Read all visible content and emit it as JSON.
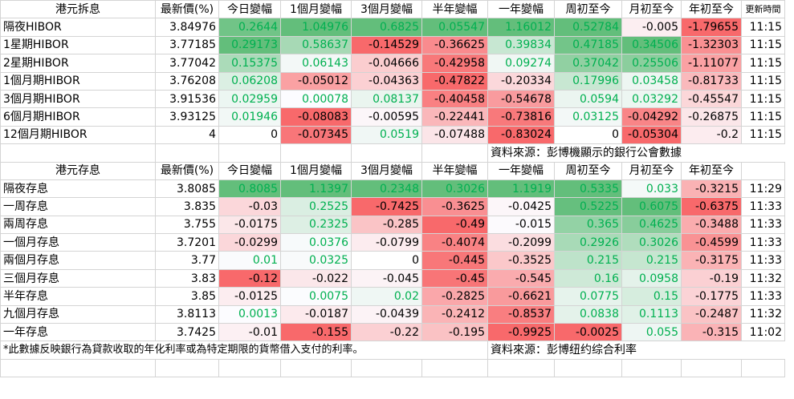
{
  "hibor": {
    "title": "港元拆息",
    "headers": [
      "最新價(%)",
      "今日變幅",
      "1個月變幅",
      "3個月變幅",
      "半年變幅",
      "一年變幅",
      "周初至今",
      "月初至今",
      "年初至今",
      "更新時間"
    ],
    "rows": [
      {
        "label": "隔夜HIBOR",
        "values": [
          "3.84976",
          "0.2644",
          "1.04976",
          "0.6825",
          "0.05547",
          "1.16012",
          "0.52784",
          "-0.005",
          "-1.79655",
          "11:15"
        ]
      },
      {
        "label": "1星期HIBOR",
        "values": [
          "3.77185",
          "0.29173",
          "0.58637",
          "-0.14529",
          "-0.36625",
          "0.39834",
          "0.47185",
          "0.34506",
          "-1.32303",
          "11:15"
        ]
      },
      {
        "label": "2星期HIBOR",
        "values": [
          "3.77042",
          "0.15375",
          "0.06143",
          "-0.04666",
          "-0.42958",
          "0.09274",
          "0.37042",
          "0.25506",
          "-1.11077",
          "11:15"
        ]
      },
      {
        "label": "1個月期HIBOR",
        "values": [
          "3.76208",
          "0.06208",
          "-0.05012",
          "-0.04363",
          "-0.47822",
          "-0.20334",
          "0.17996",
          "0.03458",
          "-0.81733",
          "11:15"
        ]
      },
      {
        "label": "3個月期HIBOR",
        "values": [
          "3.91536",
          "0.02959",
          "0.00078",
          "0.08137",
          "-0.40458",
          "-0.54678",
          "0.0594",
          "0.03292",
          "-0.45547",
          "11:15"
        ]
      },
      {
        "label": "6個月期HIBOR",
        "values": [
          "3.93125",
          "0.01946",
          "-0.08083",
          "-0.00595",
          "-0.22441",
          "-0.73816",
          "0.03125",
          "-0.04292",
          "-0.26875",
          "11:15"
        ]
      },
      {
        "label": "12個月期HIBOR",
        "values": [
          "4",
          "0",
          "-0.07345",
          "0.0519",
          "-0.07488",
          "-0.83024",
          "0",
          "-0.05304",
          "-0.2",
          "11:15"
        ]
      }
    ],
    "source": "資料來源：彭博機顯示的銀行公會數據"
  },
  "deposit": {
    "title": "港元存息",
    "headers": [
      "最新價(%)",
      "今日變幅",
      "1個月變幅",
      "3個月變幅",
      "半年變幅",
      "一年變幅",
      "周初至今",
      "月初至今",
      "年初至今",
      ""
    ],
    "rows": [
      {
        "label": "隔夜存息",
        "values": [
          "3.8085",
          "0.8085",
          "1.1397",
          "0.2348",
          "0.3026",
          "1.1919",
          "0.5335",
          "0.033",
          "-0.3215",
          "11:29"
        ]
      },
      {
        "label": "一周存息",
        "values": [
          "3.835",
          "-0.03",
          "0.2525",
          "-0.7425",
          "-0.3625",
          "-0.0425",
          "0.5225",
          "0.6075",
          "-0.6375",
          "11:33"
        ]
      },
      {
        "label": "兩周存息",
        "values": [
          "3.755",
          "-0.0175",
          "0.2325",
          "-0.285",
          "-0.49",
          "-0.015",
          "0.365",
          "0.4625",
          "-0.3488",
          "11:33"
        ]
      },
      {
        "label": "一個月存息",
        "values": [
          "3.7201",
          "-0.0299",
          "0.0376",
          "-0.0799",
          "-0.4074",
          "-0.2099",
          "0.2926",
          "0.3026",
          "-0.4599",
          "11:33"
        ]
      },
      {
        "label": "兩個月存息",
        "values": [
          "3.77",
          "0.01",
          "0.0325",
          "0",
          "-0.445",
          "-0.3525",
          "0.215",
          "0.215",
          "-0.3175",
          "11:33"
        ]
      },
      {
        "label": "三個月存息",
        "values": [
          "3.83",
          "-0.12",
          "-0.022",
          "-0.045",
          "-0.45",
          "-0.545",
          "0.16",
          "0.0958",
          "-0.19",
          "11:32"
        ]
      },
      {
        "label": "半年存息",
        "values": [
          "3.85",
          "-0.0125",
          "0.0075",
          "0.02",
          "-0.2825",
          "-0.6621",
          "0.0775",
          "0.15",
          "-0.1775",
          "11:33"
        ]
      },
      {
        "label": "九個月存息",
        "values": [
          "3.8113",
          "0.0013",
          "-0.0187",
          "-0.0439",
          "-0.2412",
          "-0.8537",
          "0.0838",
          "0.1113",
          "-0.2487",
          "11:32"
        ]
      },
      {
        "label": "一年存息",
        "values": [
          "3.7425",
          "-0.01",
          "-0.155",
          "-0.22",
          "-0.195",
          "-0.9925",
          "-0.0025",
          "0.055",
          "-0.315",
          "11:02"
        ]
      }
    ],
    "note": "*此數據反映銀行為貸款收取的年化利率或為特定期限的貨幣借入支付的利率。",
    "source": "資料來源：彭博纽约综合利率"
  },
  "colors": {
    "positive_max": "#63be7b",
    "negative_max": "#f8696b",
    "neutral": "#fcfcff",
    "positive_text": "#00b050",
    "negative_text": "#000000"
  }
}
